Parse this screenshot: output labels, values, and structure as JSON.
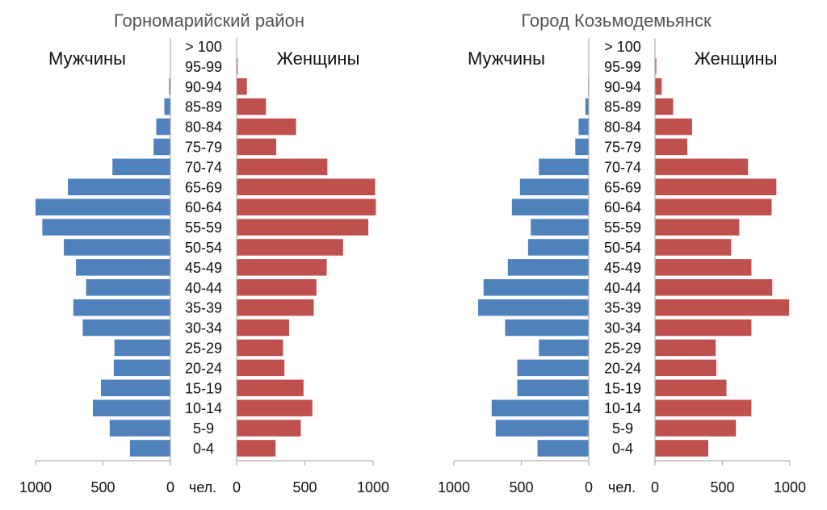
{
  "chart_data": [
    {
      "type": "bar",
      "subtype": "population-pyramid",
      "title": "Горномарийский район",
      "left_label": "Мужчины",
      "right_label": "Женщины",
      "unit_label": "чел.",
      "categories": [
        "0-4",
        "5-9",
        "10-14",
        "15-19",
        "20-24",
        "25-29",
        "30-34",
        "35-39",
        "40-44",
        "45-49",
        "50-54",
        "55-59",
        "60-64",
        "65-69",
        "70-74",
        "75-79",
        "80-84",
        "85-89",
        "90-94",
        "95-99",
        "> 100"
      ],
      "series": [
        {
          "name": "Мужчины",
          "color": "#4f81bd",
          "values": [
            300,
            450,
            575,
            515,
            420,
            415,
            650,
            720,
            625,
            700,
            790,
            950,
            1000,
            760,
            430,
            125,
            105,
            45,
            10,
            0,
            0
          ]
        },
        {
          "name": "Женщины",
          "color": "#c0504d",
          "values": [
            285,
            470,
            555,
            490,
            350,
            340,
            385,
            565,
            585,
            660,
            780,
            965,
            1020,
            1015,
            665,
            290,
            435,
            215,
            75,
            8,
            0
          ]
        }
      ],
      "xlim": [
        0,
        1000
      ],
      "ticks_left": [
        "1000",
        "500",
        "0"
      ],
      "ticks_right": [
        "0",
        "500",
        "1000"
      ]
    },
    {
      "type": "bar",
      "subtype": "population-pyramid",
      "title": "Город Козьмодемьянск",
      "left_label": "Мужчины",
      "right_label": "Женщины",
      "unit_label": "чел.",
      "categories": [
        "0-4",
        "5-9",
        "10-14",
        "15-19",
        "20-24",
        "25-29",
        "30-34",
        "35-39",
        "40-44",
        "45-49",
        "50-54",
        "55-59",
        "60-64",
        "65-69",
        "70-74",
        "75-79",
        "80-84",
        "85-89",
        "90-94",
        "95-99",
        "> 100"
      ],
      "series": [
        {
          "name": "Мужчины",
          "color": "#4f81bd",
          "values": [
            380,
            690,
            720,
            530,
            530,
            370,
            620,
            820,
            780,
            600,
            450,
            430,
            570,
            510,
            370,
            100,
            75,
            25,
            5,
            0,
            0
          ]
        },
        {
          "name": "Женщины",
          "color": "#c0504d",
          "values": [
            395,
            600,
            715,
            530,
            455,
            450,
            715,
            995,
            870,
            715,
            565,
            625,
            865,
            900,
            690,
            240,
            275,
            135,
            50,
            10,
            0
          ]
        }
      ],
      "xlim": [
        0,
        1000
      ],
      "ticks_left": [
        "1000",
        "500",
        "0"
      ],
      "ticks_right": [
        "0",
        "500",
        "1000"
      ]
    }
  ]
}
